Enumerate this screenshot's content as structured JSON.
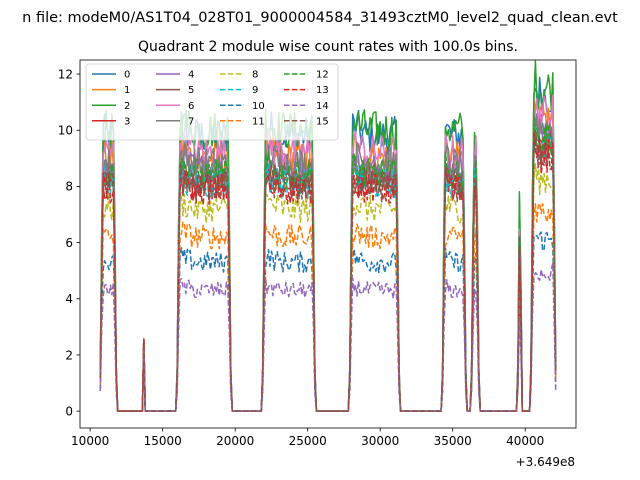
{
  "chart_data": {
    "type": "line",
    "suptitle": "n file: modeM0/AS1T04_028T01_9000004584_31493cztM0_level2_quad_clean.evt",
    "title": "Quadrant 2 module wise count rates with 100.0s bins.",
    "xlabel": "",
    "ylabel": "",
    "x_offset_label": "+3.649e8",
    "xlim": [
      9300,
      43500
    ],
    "ylim": [
      -0.6,
      12.5
    ],
    "xticks": [
      10000,
      15000,
      20000,
      25000,
      30000,
      35000,
      40000
    ],
    "xtick_labels": [
      "10000",
      "15000",
      "20000",
      "25000",
      "30000",
      "35000",
      "40000"
    ],
    "yticks": [
      0,
      2,
      4,
      6,
      8,
      10,
      12
    ],
    "ytick_labels": [
      "0",
      "2",
      "4",
      "6",
      "8",
      "10",
      "12"
    ],
    "legend_position": "upper left, 4 columns",
    "segments": [
      {
        "start": 10700,
        "end": 11800
      },
      {
        "start": 16000,
        "end": 19700
      },
      {
        "start": 21900,
        "end": 25500
      },
      {
        "start": 27900,
        "end": 31300
      },
      {
        "start": 34300,
        "end": 35900
      },
      {
        "start": 36300,
        "end": 36800
      },
      {
        "start": 39500,
        "end": 39750
      },
      {
        "start": 40400,
        "end": 42100
      }
    ],
    "spikes": [
      {
        "x": 13700,
        "y": 2.6
      }
    ],
    "series": [
      {
        "name": "0",
        "style": "solid",
        "color": "#1f77b4",
        "level": 9.8
      },
      {
        "name": "1",
        "style": "solid",
        "color": "#ff7f0e",
        "level": 9.0
      },
      {
        "name": "2",
        "style": "solid",
        "color": "#2ca02c",
        "level": 10.0
      },
      {
        "name": "3",
        "style": "solid",
        "color": "#d62728",
        "level": 8.0
      },
      {
        "name": "4",
        "style": "solid",
        "color": "#9467bd",
        "level": 8.6
      },
      {
        "name": "5",
        "style": "solid",
        "color": "#8c564b",
        "level": 8.3
      },
      {
        "name": "6",
        "style": "solid",
        "color": "#e377c2",
        "level": 9.2
      },
      {
        "name": "7",
        "style": "solid",
        "color": "#7f7f7f",
        "level": 8.8
      },
      {
        "name": "8",
        "style": "dashed",
        "color": "#bcbd22",
        "level": 7.2
      },
      {
        "name": "9",
        "style": "dashed",
        "color": "#17becf",
        "level": 8.1
      },
      {
        "name": "10",
        "style": "dashed",
        "color": "#1f77b4",
        "level": 5.3
      },
      {
        "name": "11",
        "style": "dashed",
        "color": "#ff7f0e",
        "level": 6.2
      },
      {
        "name": "12",
        "style": "dashed",
        "color": "#2ca02c",
        "level": 8.4
      },
      {
        "name": "13",
        "style": "dashed",
        "color": "#d62728",
        "level": 7.9
      },
      {
        "name": "14",
        "style": "dashed",
        "color": "#9467bd",
        "level": 4.3
      },
      {
        "name": "15",
        "style": "dashed",
        "color": "#8c564b",
        "level": 8.0
      }
    ]
  }
}
